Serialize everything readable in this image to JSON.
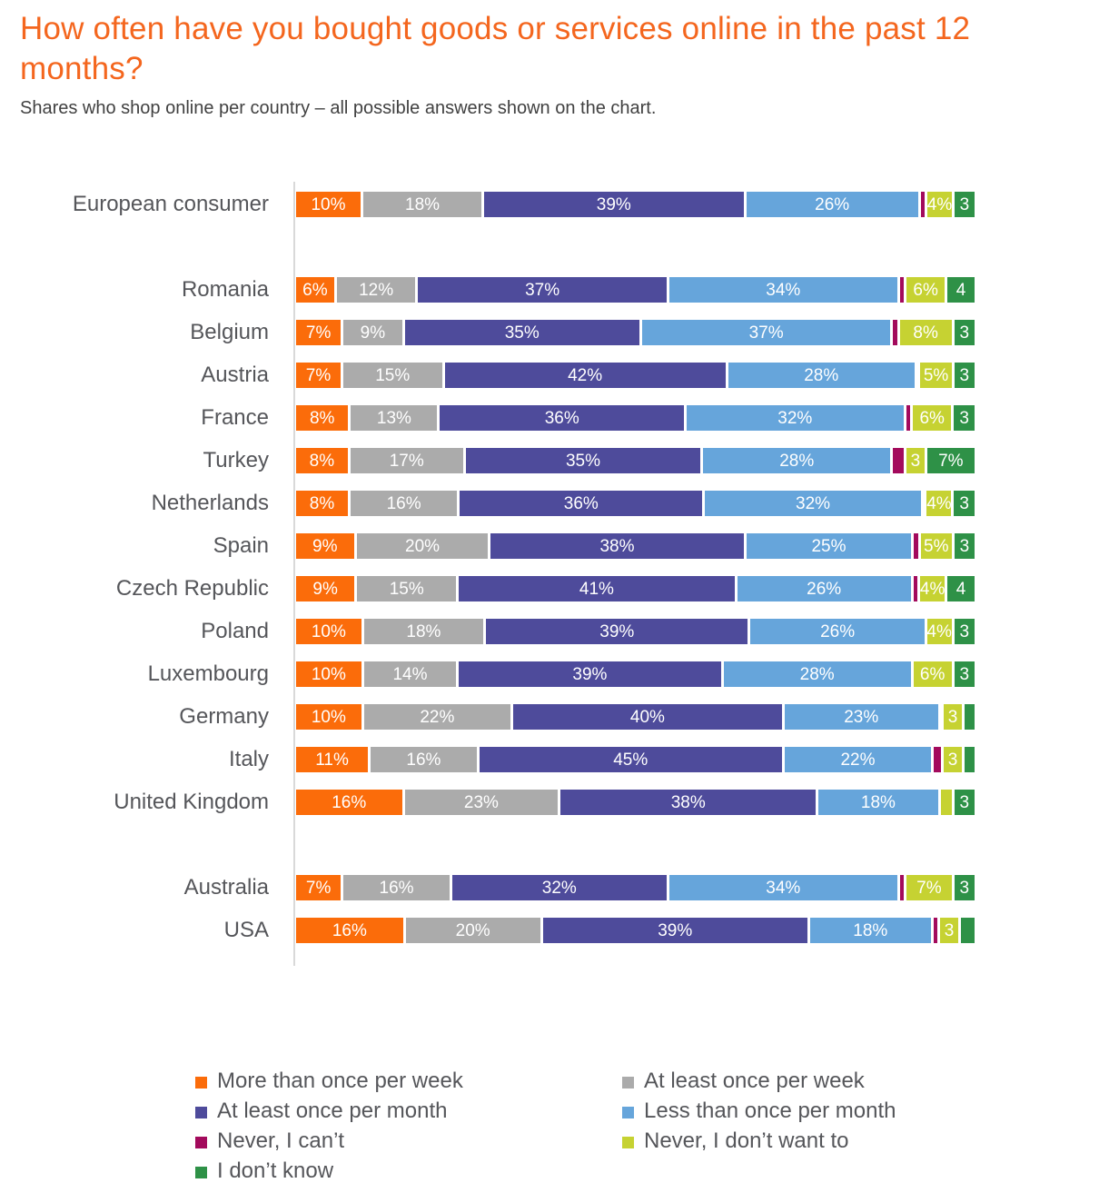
{
  "title": "How often have you bought goods or services online in the past 12 months?",
  "subtitle": "Shares who shop online per country – all possible answers shown on the chart.",
  "palette": {
    "title_orange": "#F4661E",
    "axis_gray": "#D9D9D9",
    "label_gray": "#55565A"
  },
  "chart_data": {
    "type": "bar",
    "variant": "horizontal-stacked-100",
    "unit": "percent",
    "x_range": [
      0,
      100
    ],
    "grid": false,
    "legend_position": "bottom",
    "series_keys": [
      "more-than-once-per-week",
      "at-least-once-per-week",
      "at-least-once-per-month",
      "less-than-once-per-month",
      "never-i-cant",
      "never-i-dont-want-to",
      "i-dont-know"
    ],
    "series_names": [
      "More than once per week",
      "At least once per week",
      "At least once per month",
      "Less than once per month",
      "Never, I can’t",
      "Never, I don’t want to",
      "I don’t know"
    ],
    "series_colors": [
      "#FB6C0A",
      "#ABABAB",
      "#4E4B9B",
      "#66A5DB",
      "#A30A5C",
      "#C6D232",
      "#2E9147"
    ],
    "categories": [
      "European consumer",
      "Romania",
      "Belgium",
      "Austria",
      "France",
      "Turkey",
      "Netherlands",
      "Spain",
      "Czech Republic",
      "Poland",
      "Luxembourg",
      "Germany",
      "Italy",
      "United Kingdom",
      "Australia",
      "USA"
    ],
    "rows": [
      {
        "category": "European consumer",
        "spacer_before": false,
        "values": [
          10,
          18,
          39,
          26,
          1,
          4,
          3
        ],
        "labels": [
          "10%",
          "18%",
          "39%",
          "26%",
          "",
          "4%",
          "3"
        ]
      },
      {
        "category": "Romania",
        "spacer_before": true,
        "values": [
          6,
          12,
          37,
          34,
          1,
          6,
          4
        ],
        "labels": [
          "6%",
          "12%",
          "37%",
          "34%",
          "",
          "6%",
          "4"
        ]
      },
      {
        "category": "Belgium",
        "spacer_before": false,
        "values": [
          7,
          9,
          35,
          37,
          1,
          8,
          3
        ],
        "labels": [
          "7%",
          "9%",
          "35%",
          "37%",
          "",
          "8%",
          "3"
        ]
      },
      {
        "category": "Austria",
        "spacer_before": false,
        "values": [
          7,
          15,
          42,
          28,
          0.5,
          5,
          3
        ],
        "labels": [
          "7%",
          "15%",
          "42%",
          "28%",
          "",
          "5%",
          "3"
        ]
      },
      {
        "category": "France",
        "spacer_before": false,
        "values": [
          8,
          13,
          36,
          32,
          1,
          6,
          3
        ],
        "labels": [
          "8%",
          "13%",
          "36%",
          "32%",
          "",
          "6%",
          "3"
        ]
      },
      {
        "category": "Turkey",
        "spacer_before": false,
        "values": [
          8,
          17,
          35,
          28,
          2,
          3,
          7
        ],
        "labels": [
          "8%",
          "17%",
          "35%",
          "28%",
          "",
          "3",
          "7%"
        ]
      },
      {
        "category": "Netherlands",
        "spacer_before": false,
        "values": [
          8,
          16,
          36,
          32,
          0.5,
          4,
          3
        ],
        "labels": [
          "8%",
          "16%",
          "36%",
          "32%",
          "",
          "4%",
          "3"
        ]
      },
      {
        "category": "Spain",
        "spacer_before": false,
        "values": [
          9,
          20,
          38,
          25,
          1,
          5,
          3
        ],
        "labels": [
          "9%",
          "20%",
          "38%",
          "25%",
          "",
          "5%",
          "3"
        ]
      },
      {
        "category": "Czech Republic",
        "spacer_before": false,
        "values": [
          9,
          15,
          41,
          26,
          1,
          4,
          4
        ],
        "labels": [
          "9%",
          "15%",
          "41%",
          "26%",
          "",
          "4%",
          "4"
        ]
      },
      {
        "category": "Poland",
        "spacer_before": false,
        "values": [
          10,
          18,
          39,
          26,
          0,
          4,
          3
        ],
        "labels": [
          "10%",
          "18%",
          "39%",
          "26%",
          "",
          "4%",
          "3"
        ]
      },
      {
        "category": "Luxembourg",
        "spacer_before": false,
        "values": [
          10,
          14,
          39,
          28,
          0,
          6,
          3
        ],
        "labels": [
          "10%",
          "14%",
          "39%",
          "28%",
          "",
          "6%",
          "3"
        ]
      },
      {
        "category": "Germany",
        "spacer_before": false,
        "values": [
          10,
          22,
          40,
          23,
          0.5,
          3,
          1.5
        ],
        "labels": [
          "10%",
          "22%",
          "40%",
          "23%",
          "",
          "3",
          ""
        ]
      },
      {
        "category": "Italy",
        "spacer_before": false,
        "values": [
          11,
          16,
          45,
          22,
          1.5,
          3,
          1.5
        ],
        "labels": [
          "11%",
          "16%",
          "45%",
          "22%",
          "",
          "3",
          ""
        ]
      },
      {
        "category": "United Kingdom",
        "spacer_before": false,
        "values": [
          16,
          23,
          38,
          18,
          0,
          2,
          3
        ],
        "labels": [
          "16%",
          "23%",
          "38%",
          "18%",
          "",
          "",
          "3"
        ]
      },
      {
        "category": "Australia",
        "spacer_before": true,
        "values": [
          7,
          16,
          32,
          34,
          1,
          7,
          3
        ],
        "labels": [
          "7%",
          "16%",
          "32%",
          "34%",
          "",
          "7%",
          "3"
        ]
      },
      {
        "category": "USA",
        "spacer_before": false,
        "values": [
          16,
          20,
          39,
          18,
          1,
          3,
          2
        ],
        "labels": [
          "16%",
          "20%",
          "39%",
          "18%",
          "",
          "3",
          ""
        ]
      }
    ]
  },
  "legend": {
    "items": [
      {
        "label": "More than once per week",
        "color": "#FB6C0A"
      },
      {
        "label": "At least once per week",
        "color": "#ABABAB"
      },
      {
        "label": "At least once per month",
        "color": "#4E4B9B"
      },
      {
        "label": "Less than once per month",
        "color": "#66A5DB"
      },
      {
        "label": "Never, I can’t",
        "color": "#A30A5C"
      },
      {
        "label": "Never, I don’t want to",
        "color": "#C6D232"
      },
      {
        "label": "I don’t know",
        "color": "#2E9147"
      }
    ]
  }
}
